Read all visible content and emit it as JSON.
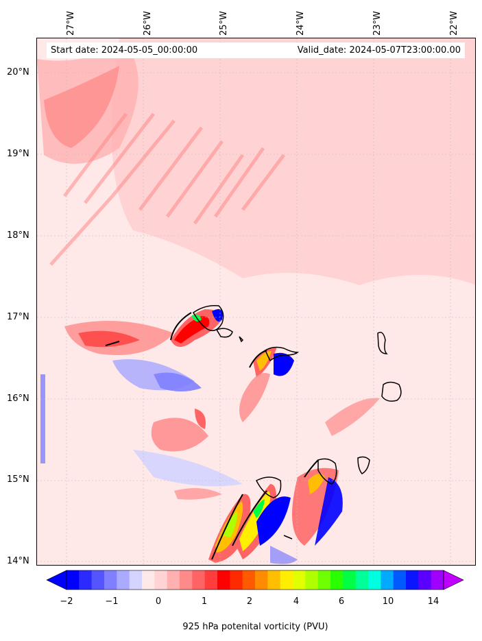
{
  "header": {
    "start_date": "Start date: 2024-05-05_00:00:00",
    "valid_date": "Valid_date: 2024-05-07T23:00:00.00"
  },
  "axes": {
    "longitude_labels": [
      "27°W",
      "26°W",
      "25°W",
      "24°W",
      "23°W",
      "22°W"
    ],
    "latitude_labels": [
      "20°N",
      "19°N",
      "18°N",
      "17°N",
      "16°N",
      "15°N",
      "14°N"
    ]
  },
  "colorbar": {
    "tick_labels": [
      "−2",
      "−1",
      "0",
      "1",
      "2",
      "4",
      "6",
      "10",
      "14"
    ],
    "label": "925 hPa potenital vorticity (PVU)",
    "colors": [
      "#0000ff",
      "#2b2bff",
      "#5555ff",
      "#7f7fff",
      "#aaaaff",
      "#d4d4ff",
      "#ffe8e8",
      "#ffd3d3",
      "#ffb0b0",
      "#ff8a8a",
      "#ff6464",
      "#ff3d3d",
      "#ff0000",
      "#ff2a00",
      "#ff5a00",
      "#ff8c00",
      "#ffbf00",
      "#ffee00",
      "#e0ff00",
      "#b0ff00",
      "#70ff00",
      "#2aff00",
      "#00ff44",
      "#00ff99",
      "#00ffe0",
      "#00aaff",
      "#005aff",
      "#0a16ff",
      "#5a00ff",
      "#a000ff"
    ],
    "under_color": "#0000ff",
    "over_color": "#c000ff"
  }
}
